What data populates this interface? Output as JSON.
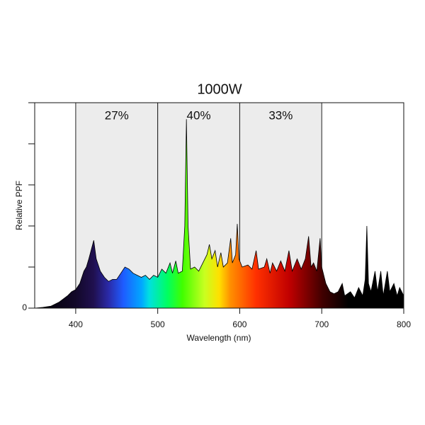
{
  "chart_data": {
    "type": "area",
    "title": "1000W",
    "x_label": "Wavelength (nm)",
    "y_label": "Relative PPF",
    "xlim": [
      350,
      800
    ],
    "xticks": [
      400,
      500,
      600,
      700,
      800
    ],
    "ylim": [
      0,
      5
    ],
    "yticks": [
      0
    ],
    "yminorticks": [
      1,
      2,
      3,
      4,
      5
    ],
    "bands": [
      {
        "range": [
          400,
          500
        ],
        "value": 27,
        "value_label": "27%"
      },
      {
        "range": [
          500,
          600
        ],
        "value": 40,
        "value_label": "40%"
      },
      {
        "range": [
          600,
          700
        ],
        "value": 33,
        "value_label": "33%"
      }
    ],
    "band_color": "#ececec",
    "x": [
      350,
      360,
      370,
      380,
      390,
      395,
      400,
      405,
      410,
      413,
      416,
      420,
      422,
      425,
      430,
      435,
      440,
      445,
      450,
      455,
      460,
      465,
      470,
      475,
      480,
      485,
      490,
      495,
      500,
      505,
      510,
      515,
      518,
      522,
      525,
      530,
      533,
      535,
      537,
      540,
      545,
      550,
      555,
      560,
      563,
      566,
      570,
      573,
      577,
      580,
      585,
      589,
      591,
      595,
      597,
      599,
      603,
      610,
      615,
      620,
      623,
      630,
      633,
      637,
      640,
      645,
      650,
      655,
      660,
      664,
      670,
      675,
      680,
      684,
      687,
      690,
      694,
      698,
      700,
      705,
      710,
      715,
      720,
      725,
      728,
      735,
      740,
      745,
      750,
      753,
      755,
      757,
      760,
      765,
      768,
      772,
      775,
      780,
      783,
      788,
      792,
      795,
      800
    ],
    "values": [
      0,
      0.02,
      0.05,
      0.15,
      0.3,
      0.4,
      0.45,
      0.6,
      0.9,
      1.0,
      1.2,
      1.5,
      1.65,
      1.2,
      0.9,
      0.75,
      0.65,
      0.7,
      0.7,
      0.85,
      1.0,
      0.95,
      0.85,
      0.8,
      0.75,
      0.8,
      0.7,
      0.8,
      0.75,
      0.95,
      0.85,
      1.1,
      0.85,
      1.15,
      0.85,
      0.9,
      2.0,
      4.6,
      2.0,
      0.95,
      1.0,
      0.9,
      1.1,
      1.3,
      1.55,
      1.2,
      1.4,
      1.0,
      1.35,
      1.0,
      1.1,
      1.7,
      1.1,
      1.3,
      2.05,
      1.2,
      1.0,
      1.05,
      0.95,
      1.4,
      0.95,
      1.0,
      1.2,
      0.85,
      1.1,
      0.9,
      1.15,
      0.9,
      1.4,
      0.9,
      1.2,
      0.95,
      1.2,
      1.75,
      1.0,
      1.1,
      0.9,
      1.7,
      1.0,
      0.6,
      0.4,
      0.35,
      0.4,
      0.6,
      0.3,
      0.4,
      0.25,
      0.5,
      0.3,
      0.7,
      2.0,
      0.6,
      0.4,
      0.9,
      0.4,
      0.9,
      0.3,
      0.9,
      0.4,
      0.6,
      0.3,
      0.5,
      0.3
    ]
  }
}
